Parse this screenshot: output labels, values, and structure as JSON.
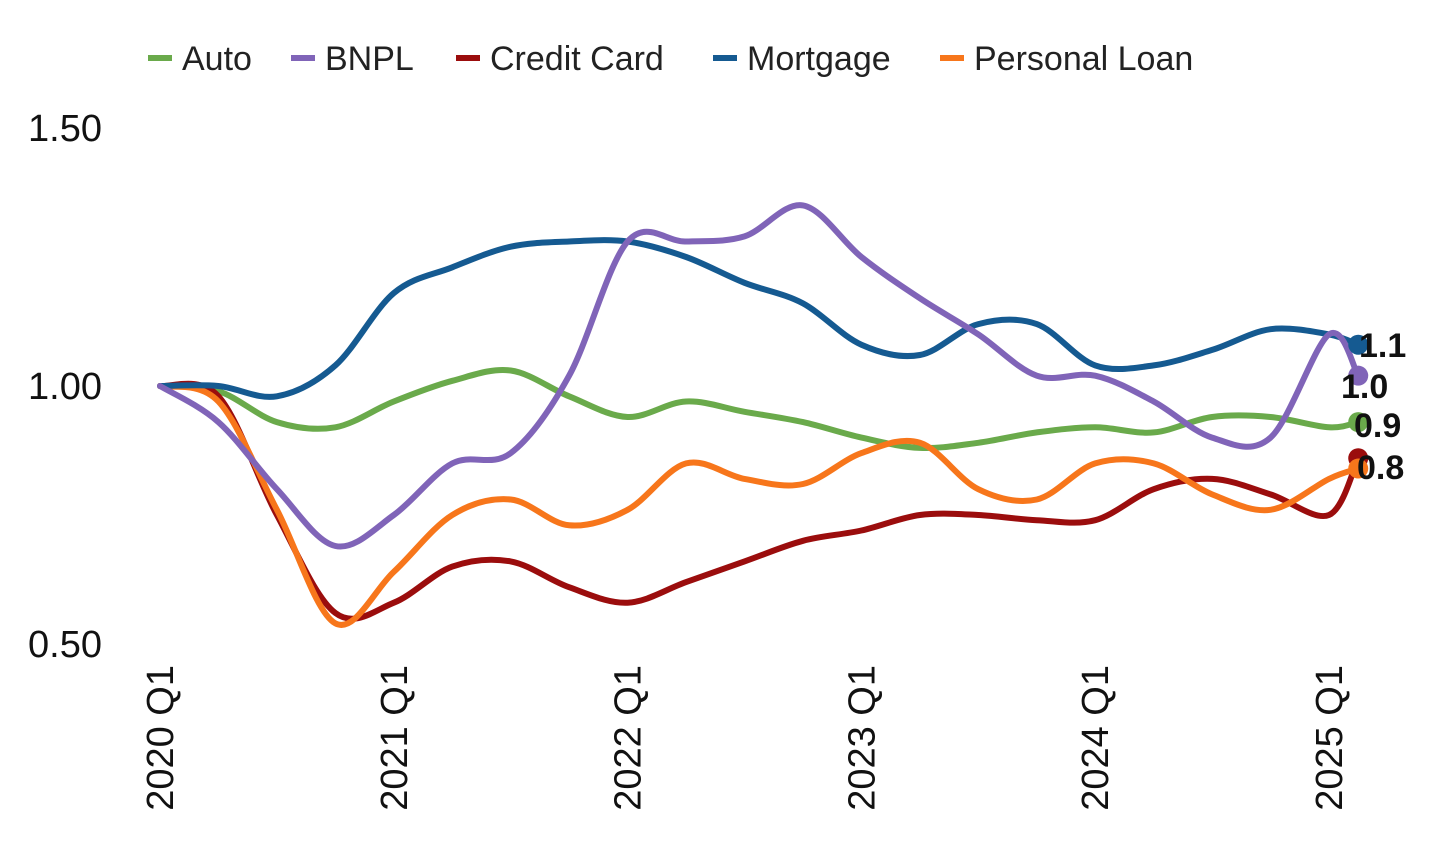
{
  "chart_data": {
    "type": "line",
    "title": "",
    "xlabel": "",
    "ylabel": "",
    "ylim": [
      0.5,
      1.5
    ],
    "yticks": [
      "1.50",
      "1.00",
      "0.50"
    ],
    "ytick_values": [
      1.5,
      1.0,
      0.5
    ],
    "x_ticks": [
      "2020 Q1",
      "2021 Q1",
      "2022 Q1",
      "2023 Q1",
      "2024 Q1",
      "2025 Q1"
    ],
    "x_tick_positions": [
      0,
      4,
      8,
      12,
      16,
      20
    ],
    "x_range": [
      0,
      20
    ],
    "grid": false,
    "legend_position": "top",
    "series": [
      {
        "name": "Auto",
        "color": "#6aaa4b",
        "end_label": "0.9",
        "points": [
          [
            0,
            1.0
          ],
          [
            1,
            0.99
          ],
          [
            2,
            0.93
          ],
          [
            3,
            0.92
          ],
          [
            4,
            0.97
          ],
          [
            5,
            1.01
          ],
          [
            6,
            1.03
          ],
          [
            7,
            0.98
          ],
          [
            8,
            0.94
          ],
          [
            9,
            0.97
          ],
          [
            10,
            0.95
          ],
          [
            11,
            0.93
          ],
          [
            12,
            0.9
          ],
          [
            13,
            0.88
          ],
          [
            14,
            0.89
          ],
          [
            15,
            0.91
          ],
          [
            16,
            0.92
          ],
          [
            17,
            0.91
          ],
          [
            18,
            0.94
          ],
          [
            19,
            0.94
          ],
          [
            20,
            0.92
          ],
          [
            20.5,
            0.93
          ]
        ]
      },
      {
        "name": "BNPL",
        "color": "#8064b8",
        "end_label": "1.0",
        "points": [
          [
            0,
            1.0
          ],
          [
            1,
            0.93
          ],
          [
            2,
            0.8
          ],
          [
            3,
            0.69
          ],
          [
            4,
            0.75
          ],
          [
            5,
            0.85
          ],
          [
            6,
            0.87
          ],
          [
            7,
            1.02
          ],
          [
            8,
            1.28
          ],
          [
            9,
            1.28
          ],
          [
            10,
            1.29
          ],
          [
            11,
            1.35
          ],
          [
            12,
            1.25
          ],
          [
            13,
            1.17
          ],
          [
            14,
            1.1
          ],
          [
            15,
            1.02
          ],
          [
            16,
            1.02
          ],
          [
            17,
            0.97
          ],
          [
            18,
            0.9
          ],
          [
            19,
            0.9
          ],
          [
            20,
            1.1
          ],
          [
            20.5,
            1.02
          ]
        ]
      },
      {
        "name": "Credit Card",
        "color": "#9b0d0d",
        "end_label": "",
        "points": [
          [
            0,
            1.0
          ],
          [
            1,
            0.98
          ],
          [
            2,
            0.75
          ],
          [
            3,
            0.56
          ],
          [
            4,
            0.58
          ],
          [
            5,
            0.65
          ],
          [
            6,
            0.66
          ],
          [
            7,
            0.61
          ],
          [
            8,
            0.58
          ],
          [
            9,
            0.62
          ],
          [
            10,
            0.66
          ],
          [
            11,
            0.7
          ],
          [
            12,
            0.72
          ],
          [
            13,
            0.75
          ],
          [
            14,
            0.75
          ],
          [
            15,
            0.74
          ],
          [
            16,
            0.74
          ],
          [
            17,
            0.8
          ],
          [
            18,
            0.82
          ],
          [
            19,
            0.79
          ],
          [
            20,
            0.75
          ],
          [
            20.5,
            0.86
          ]
        ]
      },
      {
        "name": "Mortgage",
        "color": "#155a91",
        "end_label": "1.1",
        "points": [
          [
            0,
            1.0
          ],
          [
            1,
            1.0
          ],
          [
            2,
            0.98
          ],
          [
            3,
            1.04
          ],
          [
            4,
            1.18
          ],
          [
            5,
            1.23
          ],
          [
            6,
            1.27
          ],
          [
            7,
            1.28
          ],
          [
            8,
            1.28
          ],
          [
            9,
            1.25
          ],
          [
            10,
            1.2
          ],
          [
            11,
            1.16
          ],
          [
            12,
            1.08
          ],
          [
            13,
            1.06
          ],
          [
            14,
            1.12
          ],
          [
            15,
            1.12
          ],
          [
            16,
            1.04
          ],
          [
            17,
            1.04
          ],
          [
            18,
            1.07
          ],
          [
            19,
            1.11
          ],
          [
            20,
            1.1
          ],
          [
            20.5,
            1.08
          ]
        ]
      },
      {
        "name": "Personal Loan",
        "color": "#f7761b",
        "end_label": "0.8",
        "points": [
          [
            0,
            1.0
          ],
          [
            1,
            0.97
          ],
          [
            2,
            0.76
          ],
          [
            3,
            0.54
          ],
          [
            4,
            0.64
          ],
          [
            5,
            0.75
          ],
          [
            6,
            0.78
          ],
          [
            7,
            0.73
          ],
          [
            8,
            0.76
          ],
          [
            9,
            0.85
          ],
          [
            10,
            0.82
          ],
          [
            11,
            0.81
          ],
          [
            12,
            0.87
          ],
          [
            13,
            0.89
          ],
          [
            14,
            0.8
          ],
          [
            15,
            0.78
          ],
          [
            16,
            0.85
          ],
          [
            17,
            0.85
          ],
          [
            18,
            0.79
          ],
          [
            19,
            0.76
          ],
          [
            20,
            0.82
          ],
          [
            20.5,
            0.84
          ]
        ]
      }
    ]
  }
}
